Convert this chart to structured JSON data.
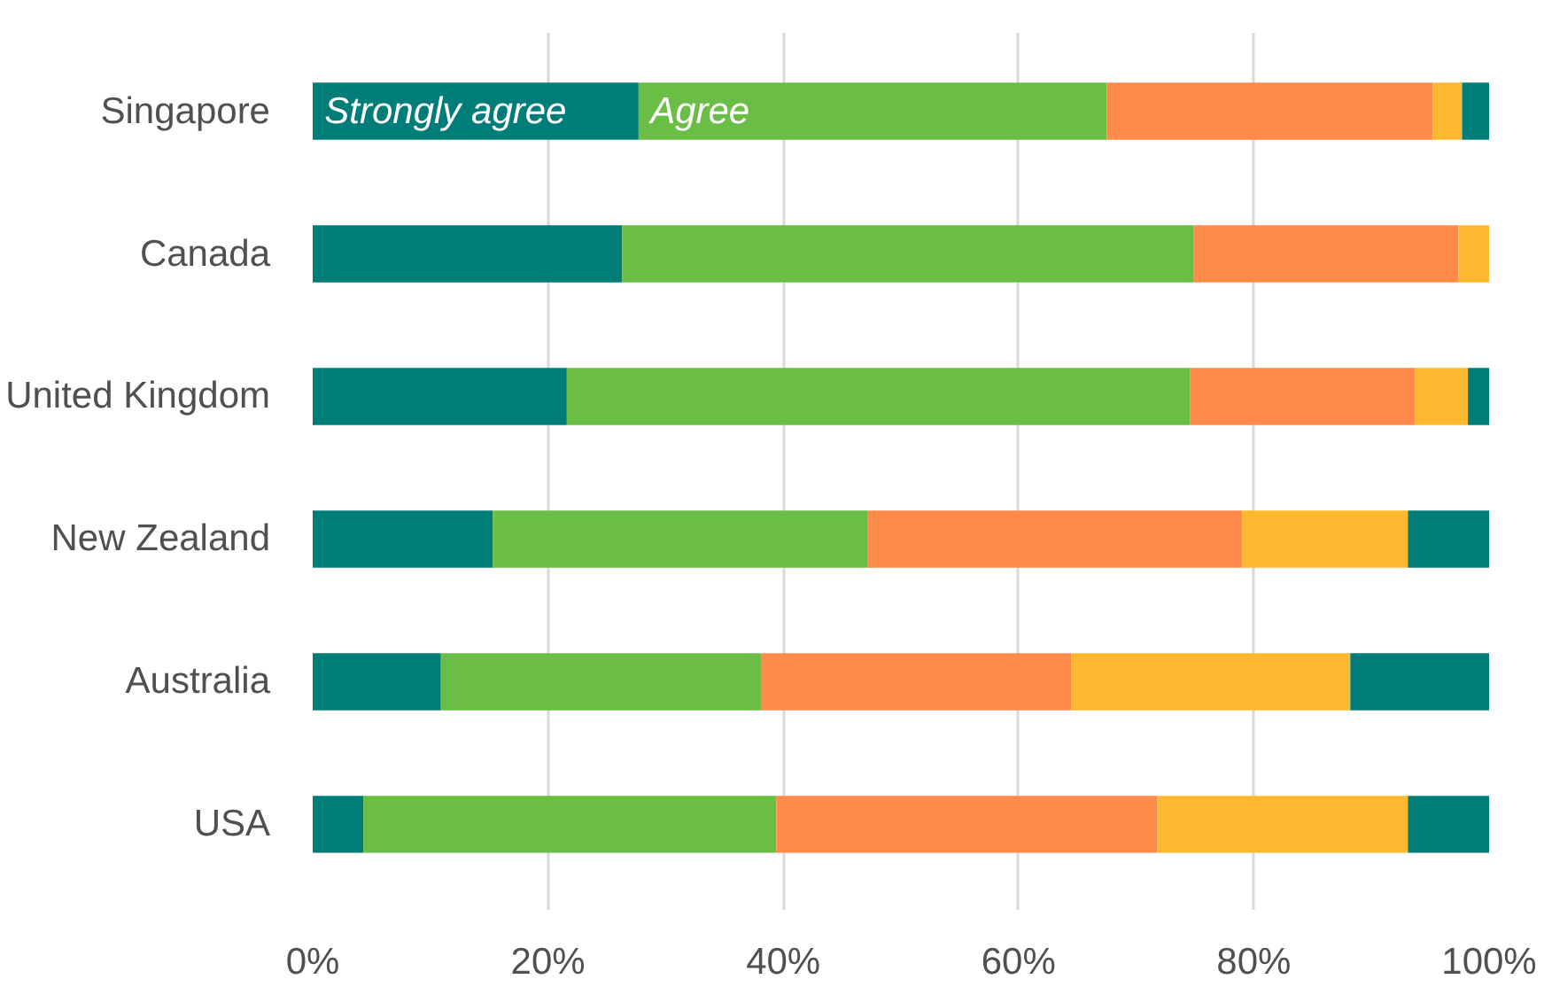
{
  "chart_data": {
    "type": "bar",
    "orientation": "horizontal",
    "stacked": true,
    "categories": [
      "Singapore",
      "Canada",
      "United Kingdom",
      "New Zealand",
      "Australia",
      "USA"
    ],
    "series": [
      {
        "name": "Strongly agree",
        "color": "#007d79",
        "values": [
          27.7,
          26.3,
          21.6,
          15.3,
          10.9,
          4.3
        ]
      },
      {
        "name": "Agree",
        "color": "#6abd45",
        "values": [
          39.8,
          48.6,
          53.0,
          31.9,
          27.2,
          35.1
        ]
      },
      {
        "color": "#ff8a4a",
        "values": [
          27.7,
          22.5,
          19.1,
          31.8,
          26.4,
          32.4
        ]
      },
      {
        "color": "#fdb830",
        "values": [
          2.5,
          2.6,
          4.5,
          14.1,
          23.7,
          21.3
        ]
      },
      {
        "color": "#007d79",
        "values": [
          2.3,
          null,
          1.8,
          6.9,
          11.8,
          6.9
        ]
      }
    ],
    "xlim": [
      0,
      100
    ],
    "xticks": [
      {
        "value": 0,
        "label": "0%"
      },
      {
        "value": 20,
        "label": "20%"
      },
      {
        "value": 40,
        "label": "40%"
      },
      {
        "value": 60,
        "label": "60%"
      },
      {
        "value": 80,
        "label": "80%"
      },
      {
        "value": 100,
        "label": "100%"
      }
    ],
    "grid": "x",
    "legend": false
  }
}
